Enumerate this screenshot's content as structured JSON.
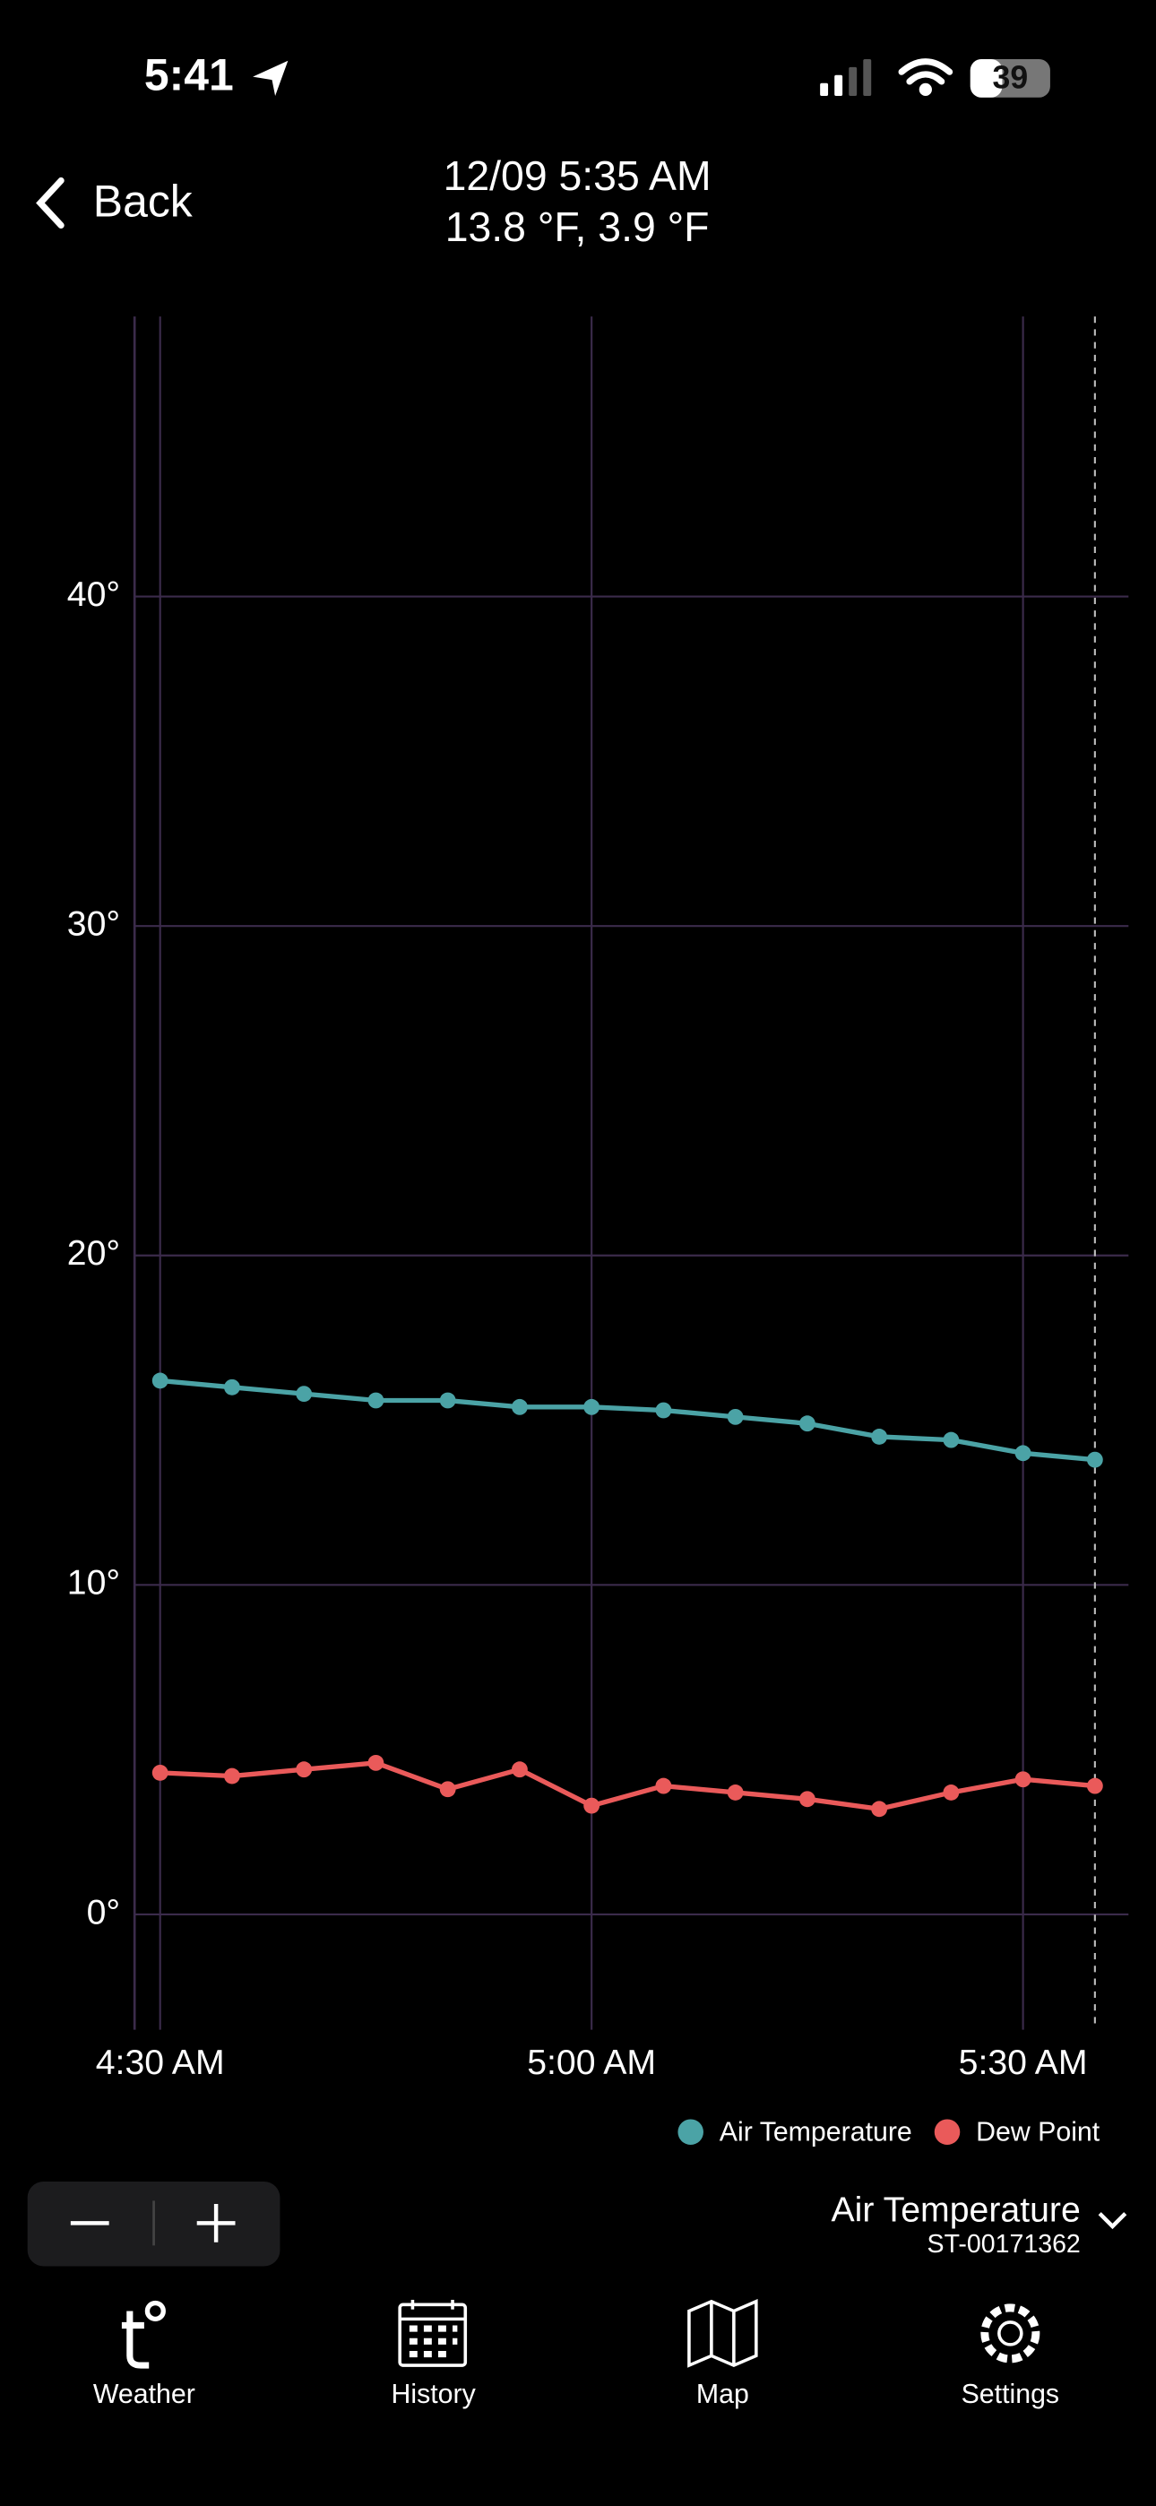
{
  "status_bar": {
    "time": "5:41",
    "battery": "39"
  },
  "nav": {
    "back": "Back"
  },
  "header": {
    "title": "12/09 5:35 AM",
    "subtitle": "13.8 °F, 3.9 °F"
  },
  "chart_data": {
    "type": "line",
    "categories": [
      "4:30 AM",
      null,
      null,
      null,
      null,
      null,
      "5:00 AM",
      null,
      null,
      null,
      null,
      null,
      "5:30 AM",
      null
    ],
    "series": [
      {
        "name": "Air Temperature",
        "color": "#4ba3a6",
        "values": [
          16.2,
          16.0,
          15.8,
          15.6,
          15.6,
          15.4,
          15.4,
          15.3,
          15.1,
          14.9,
          14.5,
          14.4,
          14.0,
          13.8
        ]
      },
      {
        "name": "Dew Point",
        "color": "#ea5a5a",
        "values": [
          4.3,
          4.2,
          4.4,
          4.6,
          3.8,
          4.4,
          3.3,
          3.9,
          3.7,
          3.5,
          3.2,
          3.7,
          4.1,
          3.9
        ]
      }
    ],
    "ylim": [
      -3.5,
      48.5
    ],
    "yticks": [
      {
        "value": 0,
        "label": "0°"
      },
      {
        "value": 10,
        "label": "10°"
      },
      {
        "value": 20,
        "label": "20°"
      },
      {
        "value": 30,
        "label": "30°"
      },
      {
        "value": 40,
        "label": "40°"
      }
    ],
    "grid": true,
    "legend": "bottom-right"
  },
  "controls": {
    "selected_metric": "Air Temperature",
    "station": "ST-00171362"
  },
  "tabs": [
    "Weather",
    "History",
    "Map",
    "Settings"
  ]
}
